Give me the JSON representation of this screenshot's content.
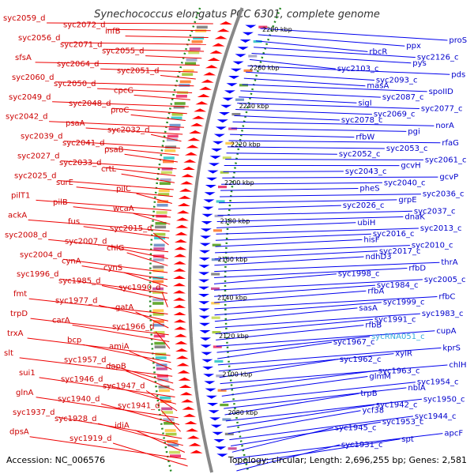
{
  "title": "Synechococcus elongatus PCC 6301, complete genome",
  "accession": "Accession: NC_006576",
  "topology": "Topology: circular; Length: 2,696,255 bp; Genes: 2,581",
  "colors": {
    "forward_label": "#cc0000",
    "reverse_label": "#0000cc",
    "rna_label": "#33aadd",
    "forward_gene": "#ff0000",
    "reverse_gene": "#0000ff",
    "backbone": "#888888",
    "dots": "#228822"
  },
  "ruler_labels": [
    "2280 kbp",
    "2260 kbp",
    "2240 kbp",
    "2220 kbp",
    "2200 kbp",
    "2180 kbp",
    "2160 kbp",
    "2140 kbp",
    "2120 kbp",
    "2100 kbp",
    "2080 kbp"
  ],
  "left_labels": [
    "syc2059_d",
    "syc2072_d",
    "infB",
    "syc2056_d",
    "syc2071_d",
    "syc2055_d",
    "sfsA",
    "syc2064_d",
    "syc2051_d",
    "syc2060_d",
    "syc2050_d",
    "cpcG",
    "syc2049_d",
    "syc2048_d",
    "proC",
    "syc2042_d",
    "psaA",
    "syc2032_d",
    "syc2039_d",
    "syc2041_d",
    "psaB",
    "syc2027_d",
    "syc2033_d",
    "crtL",
    "syc2025_d",
    "surE",
    "pilC",
    "pilT1",
    "pilB",
    "wcaA",
    "ackA",
    "fus",
    "syc2015_d",
    "syc2008_d",
    "syc2007_d",
    "chlG",
    "syc2004_d",
    "cynA",
    "cynS",
    "syc1996_d",
    "syc1985_d",
    "syc1990_d",
    "fmt",
    "syc1977_d",
    "gatA",
    "trpD",
    "carA",
    "syc1966_d",
    "trxA",
    "bcp",
    "amiA",
    "slt",
    "syc1957_d",
    "dapB",
    "sui1",
    "syc1946_d",
    "syc1947_d",
    "glnA",
    "syc1940_d",
    "syc1941_d",
    "syc1937_d",
    "syc1928_d",
    "idiA",
    "dpsA",
    "syc1919_d"
  ],
  "right_labels": [
    "proS",
    "ppx",
    "rbcR",
    "syc2126_c",
    "pys",
    "syc2103_c",
    "pds",
    "syc2093_c",
    "masA",
    "spoIID",
    "syc2087_c",
    "sigI",
    "syc2077_c",
    "syc2069_c",
    "syc2078_c",
    "norA",
    "pgi",
    "rfbW",
    "rfaG",
    "syc2053_c",
    "syc2052_c",
    "syc2061_c",
    "gcvH",
    "syc2043_c",
    "gcvP",
    "syc2040_c",
    "pheS",
    "syc2036_c",
    "grpE",
    "syc2026_c",
    "syc2037_c",
    "dnaK",
    "ubiH",
    "syc2013_c",
    "syc2016_c",
    "hisF",
    "syc2010_c",
    "syc2017_c",
    "ndhD3",
    "thrA",
    "rfbD",
    "syc1998_c",
    "syc2005_c",
    "syc1984_c",
    "rfbA",
    "rfbC",
    "syc1999_c",
    "sasA",
    "syc1983_c",
    "syc1991_c",
    "rfbB",
    "cupA",
    "sycRNA051_c",
    "syc1967_c",
    "kprS",
    "xylR",
    "syc1962_c",
    "chlH",
    "syc1963_c",
    "glmM",
    "syc1954_c",
    "nblA",
    "trpB",
    "syc1950_c",
    "syc1942_c",
    "ycf38",
    "syc1944_c",
    "syc1953_c",
    "syc1945_c",
    "apcF",
    "spt",
    "syc1931_c"
  ]
}
